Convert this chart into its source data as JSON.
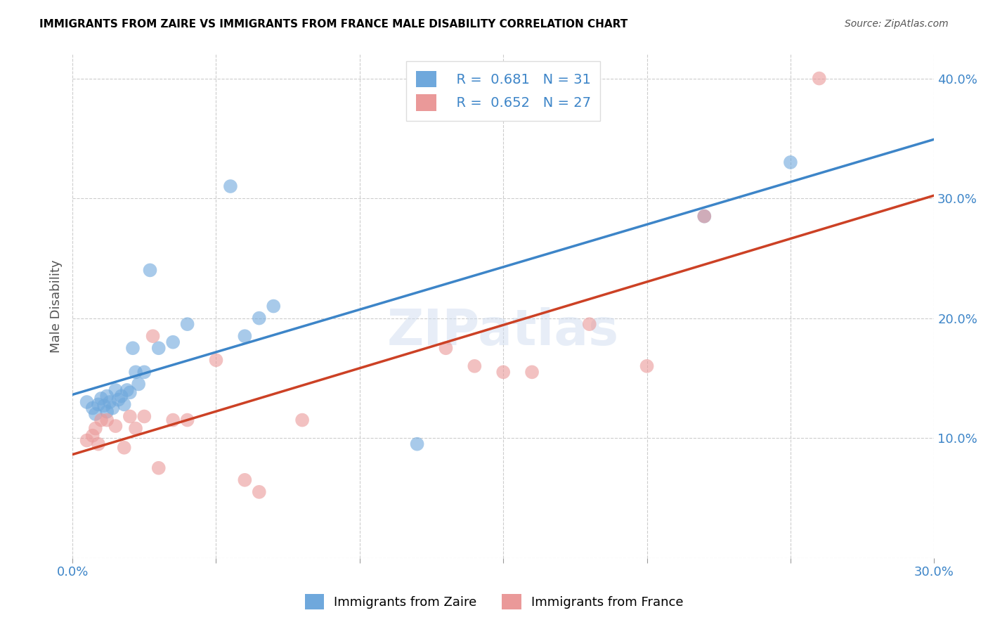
{
  "title": "IMMIGRANTS FROM ZAIRE VS IMMIGRANTS FROM FRANCE MALE DISABILITY CORRELATION CHART",
  "source": "Source: ZipAtlas.com",
  "xlabel": "",
  "ylabel": "Male Disability",
  "xlim": [
    0.0,
    0.3
  ],
  "ylim": [
    0.0,
    0.42
  ],
  "xticks": [
    0.0,
    0.05,
    0.1,
    0.15,
    0.2,
    0.25,
    0.3
  ],
  "yticks": [
    0.0,
    0.1,
    0.2,
    0.3,
    0.4
  ],
  "xtick_labels": [
    "0.0%",
    "",
    "",
    "",
    "",
    "",
    "30.0%"
  ],
  "ytick_labels": [
    "",
    "10.0%",
    "20.0%",
    "30.0%",
    "40.0%"
  ],
  "legend1_R": "0.681",
  "legend1_N": "31",
  "legend2_R": "0.652",
  "legend2_N": "27",
  "color_zaire": "#6fa8dc",
  "color_france": "#ea9999",
  "color_line_zaire": "#3d85c8",
  "color_line_france": "#cc4125",
  "watermark": "ZIPatlas",
  "zaire_x": [
    0.005,
    0.007,
    0.008,
    0.009,
    0.01,
    0.011,
    0.012,
    0.012,
    0.013,
    0.014,
    0.015,
    0.016,
    0.017,
    0.018,
    0.019,
    0.02,
    0.021,
    0.022,
    0.023,
    0.025,
    0.027,
    0.03,
    0.035,
    0.04,
    0.055,
    0.06,
    0.065,
    0.07,
    0.12,
    0.22,
    0.25
  ],
  "zaire_y": [
    0.13,
    0.125,
    0.12,
    0.128,
    0.133,
    0.127,
    0.122,
    0.135,
    0.13,
    0.125,
    0.14,
    0.132,
    0.135,
    0.128,
    0.14,
    0.138,
    0.175,
    0.155,
    0.145,
    0.155,
    0.24,
    0.175,
    0.18,
    0.195,
    0.31,
    0.185,
    0.2,
    0.21,
    0.095,
    0.285,
    0.33
  ],
  "france_x": [
    0.005,
    0.007,
    0.008,
    0.009,
    0.01,
    0.012,
    0.015,
    0.018,
    0.02,
    0.022,
    0.025,
    0.028,
    0.03,
    0.035,
    0.04,
    0.05,
    0.06,
    0.065,
    0.08,
    0.13,
    0.14,
    0.15,
    0.16,
    0.18,
    0.2,
    0.22,
    0.26
  ],
  "france_y": [
    0.098,
    0.102,
    0.108,
    0.095,
    0.115,
    0.115,
    0.11,
    0.092,
    0.118,
    0.108,
    0.118,
    0.185,
    0.075,
    0.115,
    0.115,
    0.165,
    0.065,
    0.055,
    0.115,
    0.175,
    0.16,
    0.155,
    0.155,
    0.195,
    0.16,
    0.285,
    0.4
  ]
}
